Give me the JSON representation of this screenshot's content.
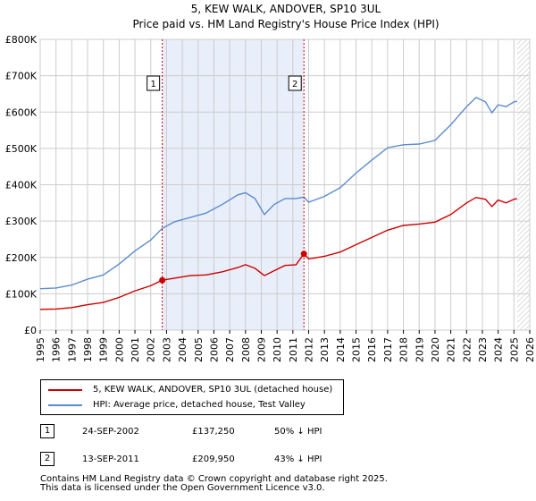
{
  "chart_data": {
    "type": "line",
    "title": "5, KEW WALK, ANDOVER, SP10 3UL",
    "subtitle": "Price paid vs. HM Land Registry's House Price Index (HPI)",
    "xlim": [
      1995,
      2026
    ],
    "ylim": [
      0,
      800000
    ],
    "x_ticks": [
      1995,
      1996,
      1997,
      1998,
      1999,
      2000,
      2001,
      2002,
      2003,
      2004,
      2005,
      2006,
      2007,
      2008,
      2009,
      2010,
      2011,
      2012,
      2013,
      2014,
      2015,
      2016,
      2017,
      2018,
      2019,
      2020,
      2021,
      2022,
      2023,
      2024,
      2025,
      2026
    ],
    "y_ticks": [
      {
        "value": 0,
        "label": "£0"
      },
      {
        "value": 100000,
        "label": "£100K"
      },
      {
        "value": 200000,
        "label": "£200K"
      },
      {
        "value": 300000,
        "label": "£300K"
      },
      {
        "value": 400000,
        "label": "£400K"
      },
      {
        "value": 500000,
        "label": "£500K"
      },
      {
        "value": 600000,
        "label": "£600K"
      },
      {
        "value": 700000,
        "label": "£700K"
      },
      {
        "value": 800000,
        "label": "£800K"
      }
    ],
    "grid": true,
    "shaded_range": [
      2002.73,
      2011.7
    ],
    "future_hatch_from": 2025.2,
    "series": [
      {
        "name": "5, KEW WALK, ANDOVER, SP10 3UL (detached house)",
        "color": "#cc0000",
        "points": [
          [
            1995.0,
            57000
          ],
          [
            1996.0,
            58000
          ],
          [
            1997.0,
            62000
          ],
          [
            1998.0,
            70000
          ],
          [
            1999.0,
            76000
          ],
          [
            2000.0,
            90000
          ],
          [
            2001.0,
            108000
          ],
          [
            2002.0,
            122000
          ],
          [
            2002.73,
            137250
          ],
          [
            2003.5,
            143000
          ],
          [
            2004.5,
            150000
          ],
          [
            2005.5,
            152000
          ],
          [
            2006.5,
            160000
          ],
          [
            2007.5,
            172000
          ],
          [
            2008.0,
            180000
          ],
          [
            2008.6,
            170000
          ],
          [
            2009.2,
            150000
          ],
          [
            2009.8,
            163000
          ],
          [
            2010.5,
            178000
          ],
          [
            2011.2,
            180000
          ],
          [
            2011.7,
            209950
          ],
          [
            2012.0,
            196000
          ],
          [
            2013.0,
            203000
          ],
          [
            2014.0,
            215000
          ],
          [
            2015.0,
            235000
          ],
          [
            2016.0,
            255000
          ],
          [
            2017.0,
            275000
          ],
          [
            2018.0,
            288000
          ],
          [
            2019.0,
            292000
          ],
          [
            2020.0,
            297000
          ],
          [
            2021.0,
            318000
          ],
          [
            2022.0,
            350000
          ],
          [
            2022.6,
            365000
          ],
          [
            2023.2,
            360000
          ],
          [
            2023.6,
            340000
          ],
          [
            2024.0,
            358000
          ],
          [
            2024.5,
            350000
          ],
          [
            2025.0,
            360000
          ],
          [
            2025.2,
            362000
          ]
        ]
      },
      {
        "name": "HPI: Average price, detached house, Test Valley",
        "color": "#5b8ccf",
        "points": [
          [
            1995.0,
            114000
          ],
          [
            1996.0,
            116000
          ],
          [
            1997.0,
            124000
          ],
          [
            1998.0,
            140000
          ],
          [
            1999.0,
            152000
          ],
          [
            2000.0,
            182000
          ],
          [
            2001.0,
            218000
          ],
          [
            2002.0,
            248000
          ],
          [
            2002.73,
            280000
          ],
          [
            2003.5,
            298000
          ],
          [
            2004.5,
            310000
          ],
          [
            2005.5,
            322000
          ],
          [
            2006.5,
            345000
          ],
          [
            2007.5,
            372000
          ],
          [
            2008.0,
            378000
          ],
          [
            2008.6,
            362000
          ],
          [
            2009.2,
            318000
          ],
          [
            2009.8,
            345000
          ],
          [
            2010.5,
            362000
          ],
          [
            2011.2,
            362000
          ],
          [
            2011.7,
            366000
          ],
          [
            2012.0,
            352000
          ],
          [
            2013.0,
            368000
          ],
          [
            2014.0,
            392000
          ],
          [
            2015.0,
            432000
          ],
          [
            2016.0,
            468000
          ],
          [
            2017.0,
            502000
          ],
          [
            2018.0,
            510000
          ],
          [
            2019.0,
            512000
          ],
          [
            2020.0,
            522000
          ],
          [
            2021.0,
            565000
          ],
          [
            2022.0,
            615000
          ],
          [
            2022.6,
            640000
          ],
          [
            2023.2,
            628000
          ],
          [
            2023.6,
            598000
          ],
          [
            2024.0,
            620000
          ],
          [
            2024.5,
            615000
          ],
          [
            2025.0,
            628000
          ],
          [
            2025.2,
            630000
          ]
        ]
      }
    ],
    "annotations": [
      {
        "label": "1",
        "x": 2002.73,
        "value": 137250
      },
      {
        "label": "2",
        "x": 2011.7,
        "value": 209950
      }
    ]
  },
  "legend": {
    "items": [
      {
        "label": "5, KEW WALK, ANDOVER, SP10 3UL (detached house)",
        "color": "#cc0000"
      },
      {
        "label": "HPI: Average price, detached house, Test Valley",
        "color": "#5b8ccf"
      }
    ]
  },
  "sales": [
    {
      "num": "1",
      "date": "24-SEP-2002",
      "price": "£137,250",
      "hpi": "50% ↓ HPI"
    },
    {
      "num": "2",
      "date": "13-SEP-2011",
      "price": "£209,950",
      "hpi": "43% ↓ HPI"
    }
  ],
  "footer": {
    "line1": "Contains HM Land Registry data © Crown copyright and database right 2025.",
    "line2": "This data is licensed under the Open Government Licence v3.0."
  }
}
